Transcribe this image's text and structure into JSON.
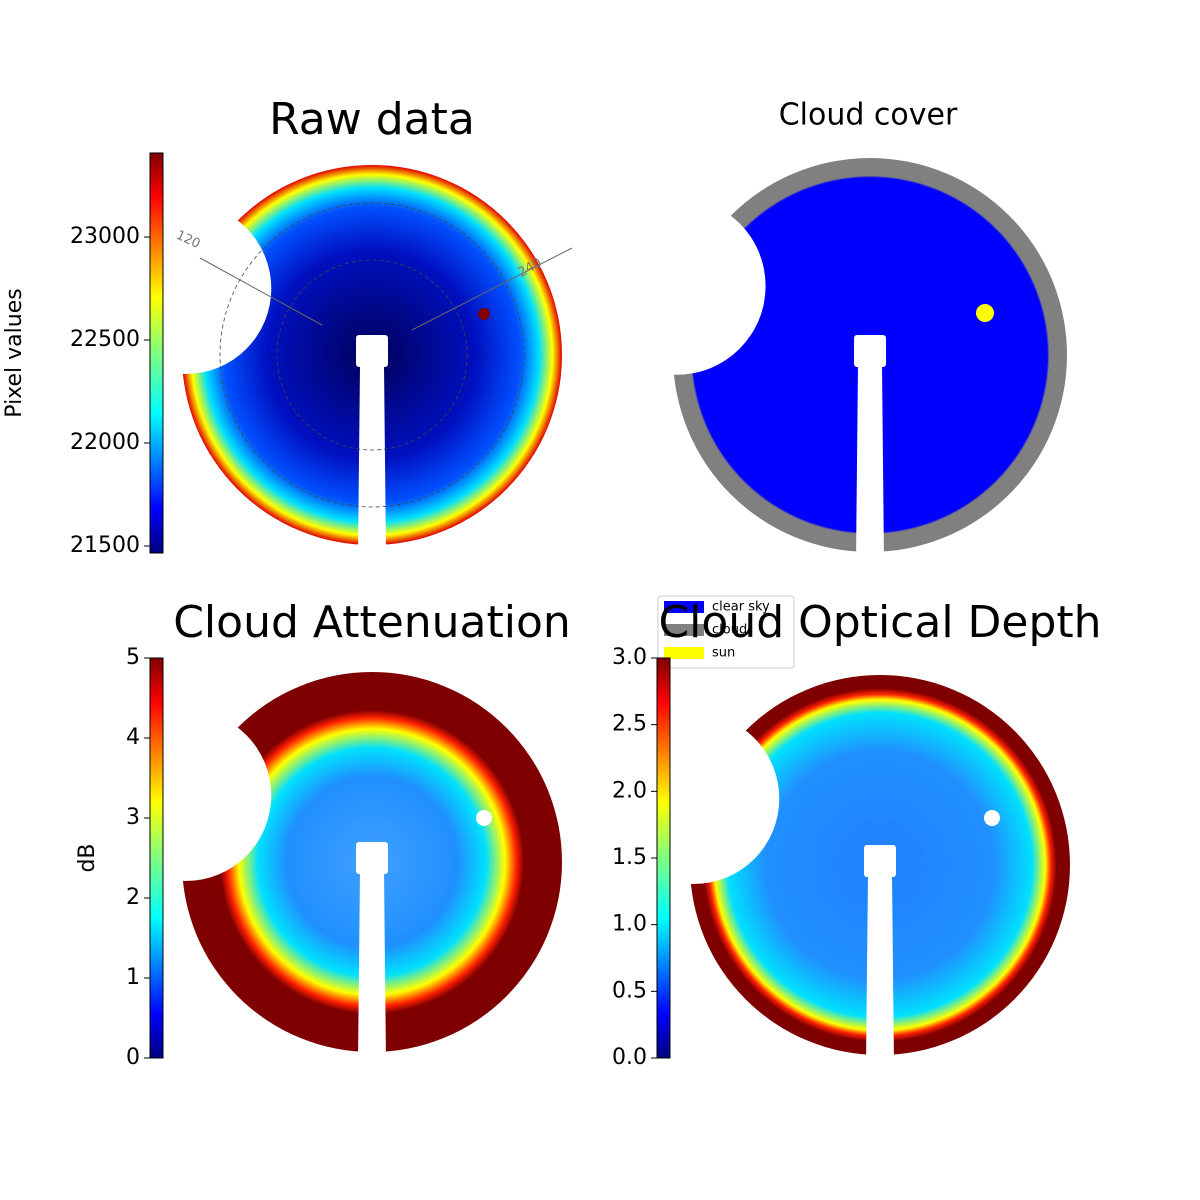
{
  "chart_data": [
    {
      "type": "image",
      "title": "Raw data",
      "colorbar_label": "Pixel values",
      "colormap": "jet",
      "ylim": [
        21466,
        23408
      ],
      "yticks": [
        21500,
        22000,
        22500,
        23000
      ],
      "annotations": [
        "120",
        "240"
      ]
    },
    {
      "type": "image",
      "title": "Cloud cover",
      "series": [
        {
          "name": "clear sky",
          "color": "#0000ff"
        },
        {
          "name": "cloud",
          "color": "#808080"
        },
        {
          "name": "sun",
          "color": "#ffff00"
        }
      ]
    },
    {
      "type": "image",
      "title": "Cloud Attenuation",
      "colorbar_label": "dB",
      "colormap": "jet",
      "ylim": [
        0,
        5
      ],
      "yticks": [
        0,
        1,
        2,
        3,
        4,
        5
      ]
    },
    {
      "type": "image",
      "title": "Cloud Optical Depth",
      "colormap": "jet",
      "ylim": [
        0,
        3
      ],
      "yticks": [
        {
          "value": 0,
          "label": "0.0"
        },
        0.5,
        {
          "value": 1,
          "label": "1.0"
        },
        1.5,
        {
          "value": 2,
          "label": "2.0"
        },
        2.5,
        {
          "value": 3,
          "label": "3.0"
        }
      ]
    }
  ]
}
